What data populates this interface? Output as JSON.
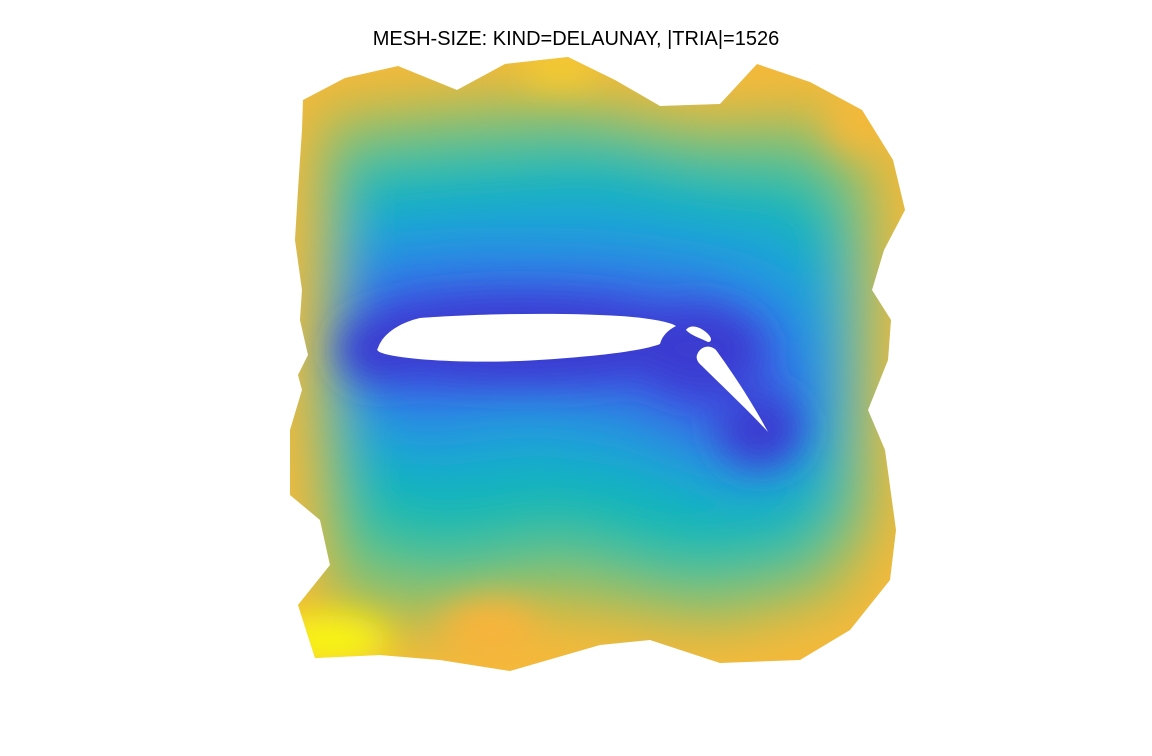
{
  "chart_data": {
    "type": "heatmap",
    "title": "MESH-SIZE: KIND=DELAUNAY, |TRIA|=1526",
    "xlabel": "",
    "ylabel": "",
    "axes_visible": false,
    "colormap": "parula",
    "colormap_stops": [
      "#352a87",
      "#3c4fe0",
      "#1aa3d9",
      "#0bb8b5",
      "#4cc38a",
      "#a4be55",
      "#f5b93a",
      "#f9fb0e"
    ],
    "mesh_kind": "DELAUNAY",
    "triangle_count": 1526,
    "low_value_regions": [
      "airfoil main element",
      "airfoil flap"
    ],
    "high_value_regions": [
      "outer boundary corners"
    ]
  }
}
